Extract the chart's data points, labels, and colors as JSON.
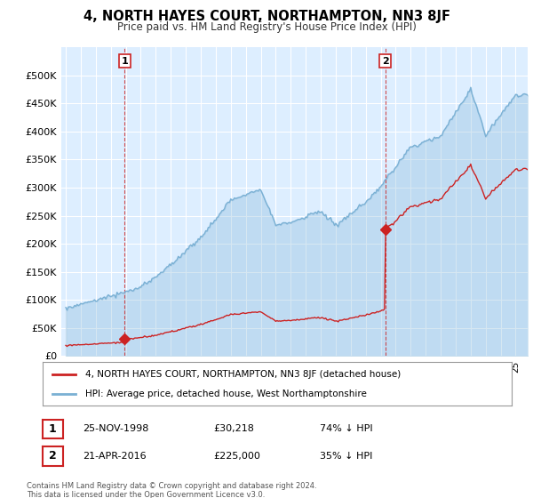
{
  "title": "4, NORTH HAYES COURT, NORTHAMPTON, NN3 8JF",
  "subtitle": "Price paid vs. HM Land Registry's House Price Index (HPI)",
  "legend_line1": "4, NORTH HAYES COURT, NORTHAMPTON, NN3 8JF (detached house)",
  "legend_line2": "HPI: Average price, detached house, West Northamptonshire",
  "table_row1_label": "1",
  "table_row1_date": "25-NOV-1998",
  "table_row1_price": "£30,218",
  "table_row1_hpi": "74% ↓ HPI",
  "table_row2_label": "2",
  "table_row2_date": "21-APR-2016",
  "table_row2_price": "£225,000",
  "table_row2_hpi": "35% ↓ HPI",
  "footer": "Contains HM Land Registry data © Crown copyright and database right 2024.\nThis data is licensed under the Open Government Licence v3.0.",
  "price_paid_color": "#cc2222",
  "hpi_color": "#7ab0d4",
  "annotation_box_color": "#cc2222",
  "ylim": [
    0,
    550000
  ],
  "yticks": [
    0,
    50000,
    100000,
    150000,
    200000,
    250000,
    300000,
    350000,
    400000,
    450000,
    500000
  ],
  "background_color": "#ffffff",
  "plot_bg_color": "#ddeeff",
  "grid_color": "#ffffff",
  "sale1_year": 1998.92,
  "sale1_price": 30218,
  "sale2_year": 2016.3,
  "sale2_price": 225000
}
